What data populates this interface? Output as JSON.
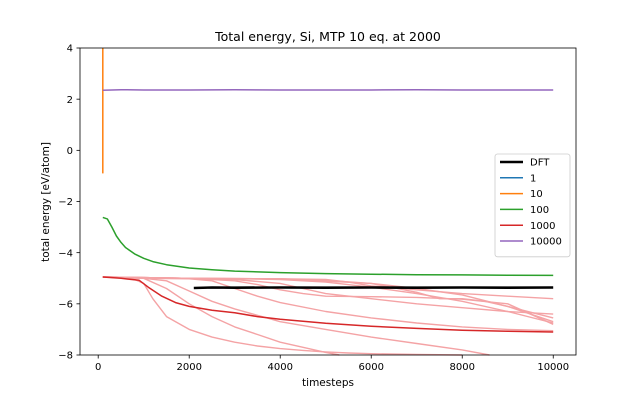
{
  "chart_data": {
    "type": "line",
    "title": "Total energy, Si, MTP 10 eq. at 2000",
    "xlabel": "timesteps",
    "ylabel": "total energy [eV/atom]",
    "xlim": [
      -400,
      10500
    ],
    "ylim": [
      -8,
      4
    ],
    "xticks": [
      0,
      2000,
      4000,
      6000,
      8000,
      10000
    ],
    "xtick_labels": [
      "0",
      "2000",
      "4000",
      "6000",
      "8000",
      "10000"
    ],
    "yticks": [
      -8,
      -6,
      -4,
      -2,
      0,
      2,
      4
    ],
    "ytick_labels": [
      "−8",
      "−6",
      "−4",
      "−2",
      "0",
      "2",
      "4"
    ],
    "grid": false,
    "legend_placement": "center-right",
    "legend": [
      {
        "label": "DFT",
        "color": "#000000"
      },
      {
        "label": "1",
        "color": "#1f77b4"
      },
      {
        "label": "10",
        "color": "#ff7f0e"
      },
      {
        "label": "100",
        "color": "#2ca02c"
      },
      {
        "label": "1000",
        "color": "#d62728"
      },
      {
        "label": "10000",
        "color": "#9467bd"
      }
    ],
    "series": [
      {
        "name": "DFT",
        "color": "#000000",
        "width": 2.6,
        "x": [
          2100,
          2500,
          3000,
          4000,
          5000,
          6000,
          7000,
          8000,
          9000,
          10000
        ],
        "y": [
          -5.38,
          -5.36,
          -5.37,
          -5.36,
          -5.37,
          -5.36,
          -5.37,
          -5.36,
          -5.37,
          -5.36
        ]
      },
      {
        "name": "10",
        "color": "#ff7f0e",
        "width": 1.5,
        "x": [
          100,
          100,
          100
        ],
        "y": [
          -0.9,
          2.0,
          4.0
        ]
      },
      {
        "name": "100",
        "color": "#2ca02c",
        "width": 1.5,
        "x": [
          100,
          200,
          300,
          400,
          500,
          600,
          800,
          1000,
          1200,
          1500,
          2000,
          2500,
          3000,
          4000,
          5000,
          6000,
          7000,
          8000,
          9000,
          10000
        ],
        "y": [
          -2.62,
          -2.68,
          -3.0,
          -3.35,
          -3.6,
          -3.8,
          -4.05,
          -4.22,
          -4.35,
          -4.47,
          -4.6,
          -4.67,
          -4.72,
          -4.78,
          -4.82,
          -4.84,
          -4.86,
          -4.87,
          -4.88,
          -4.89
        ]
      },
      {
        "name": "1000",
        "color": "#d62728",
        "width": 1.5,
        "x": [
          100,
          500,
          900,
          1100,
          1400,
          1700,
          2000,
          2500,
          3000,
          3500,
          4000,
          5000,
          6000,
          7000,
          8000,
          9000,
          10000
        ],
        "y": [
          -4.95,
          -5.0,
          -5.08,
          -5.35,
          -5.7,
          -5.95,
          -6.1,
          -6.25,
          -6.35,
          -6.5,
          -6.6,
          -6.76,
          -6.88,
          -6.96,
          -7.03,
          -7.07,
          -7.1
        ]
      },
      {
        "name": "10000",
        "color": "#9467bd",
        "width": 1.5,
        "x": [
          100,
          500,
          1000,
          2000,
          3000,
          4000,
          5000,
          6000,
          7000,
          8000,
          9000,
          10000
        ],
        "y": [
          2.35,
          2.37,
          2.36,
          2.36,
          2.37,
          2.36,
          2.36,
          2.36,
          2.37,
          2.36,
          2.36,
          2.36
        ]
      }
    ],
    "faint_lines": {
      "color": "#f4a3a5",
      "lines": [
        {
          "x": [
            100,
            500,
            800,
            1000,
            1200,
            1500,
            2000,
            2500,
            3000,
            3500,
            4000,
            4500,
            5000,
            5500,
            6000,
            7000,
            8000
          ],
          "y": [
            -4.95,
            -4.98,
            -5.05,
            -5.2,
            -5.8,
            -6.5,
            -7.0,
            -7.3,
            -7.5,
            -7.65,
            -7.75,
            -7.82,
            -7.88,
            -7.92,
            -7.95,
            -7.98,
            -8.0
          ]
        },
        {
          "x": [
            100,
            1000,
            1500,
            2000,
            2500,
            3000,
            3500,
            4000,
            4500,
            5000,
            5300
          ],
          "y": [
            -4.95,
            -5.0,
            -5.4,
            -6.0,
            -6.5,
            -6.9,
            -7.2,
            -7.5,
            -7.7,
            -7.9,
            -8.0
          ]
        },
        {
          "x": [
            100,
            1000,
            1500,
            2000,
            2500,
            3000,
            4000,
            5000,
            6000,
            7000,
            8000,
            8600
          ],
          "y": [
            -4.95,
            -5.0,
            -5.1,
            -5.5,
            -5.9,
            -6.2,
            -6.7,
            -7.0,
            -7.3,
            -7.55,
            -7.8,
            -8.0
          ]
        },
        {
          "x": [
            100,
            1000,
            2000,
            2500,
            3000,
            3500,
            4000,
            5000,
            6000,
            7000,
            8000,
            9000,
            10000
          ],
          "y": [
            -4.95,
            -5.0,
            -5.02,
            -5.1,
            -5.4,
            -5.7,
            -5.95,
            -6.3,
            -6.55,
            -6.75,
            -6.9,
            -7.0,
            -7.05
          ]
        },
        {
          "x": [
            100,
            2000,
            3000,
            4000,
            4500,
            5000,
            6000,
            7000,
            8000,
            9000,
            10000
          ],
          "y": [
            -4.95,
            -5.0,
            -5.05,
            -5.2,
            -5.4,
            -5.6,
            -5.8,
            -6.0,
            -6.15,
            -6.3,
            -6.4
          ]
        },
        {
          "x": [
            100,
            2000,
            3000,
            3500,
            4000,
            4500,
            5000,
            6000,
            7000,
            8000,
            9000,
            10000
          ],
          "y": [
            -4.95,
            -5.0,
            -5.1,
            -5.25,
            -5.45,
            -5.6,
            -5.7,
            -5.72,
            -5.75,
            -5.82,
            -6.0,
            -6.8
          ]
        },
        {
          "x": [
            100,
            2000,
            3000,
            4000,
            5000,
            6000,
            7000,
            7500,
            8000,
            9000,
            10000
          ],
          "y": [
            -4.95,
            -5.0,
            -5.02,
            -5.05,
            -5.15,
            -5.35,
            -5.6,
            -5.75,
            -5.9,
            -6.3,
            -6.75
          ]
        },
        {
          "x": [
            100,
            2000,
            4000,
            5000,
            6000,
            7000,
            8000,
            9000,
            10000
          ],
          "y": [
            -4.95,
            -5.0,
            -5.02,
            -5.08,
            -5.2,
            -5.4,
            -5.65,
            -6.1,
            -6.55
          ]
        },
        {
          "x": [
            100,
            2000,
            4000,
            6000,
            7000,
            7500,
            8000,
            8500,
            9000,
            10000
          ],
          "y": [
            -4.95,
            -5.0,
            -5.02,
            -5.2,
            -5.55,
            -5.8,
            -5.8,
            -5.9,
            -6.1,
            -6.7
          ]
        },
        {
          "x": [
            100,
            2000,
            4000,
            5000,
            5500,
            6000,
            7000,
            8000,
            9000,
            10000
          ],
          "y": [
            -4.95,
            -5.0,
            -5.02,
            -5.05,
            -5.15,
            -5.3,
            -5.45,
            -5.6,
            -5.7,
            -5.8
          ]
        }
      ]
    }
  }
}
